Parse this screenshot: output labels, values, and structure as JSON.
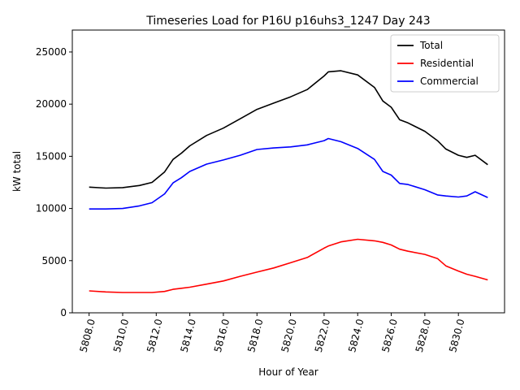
{
  "chart_data": {
    "type": "line",
    "title": "Timeseries Load for P16U p16uhs3_1247  Day 243",
    "xlabel": "Hour of Year",
    "ylabel": "kW total",
    "xlim": [
      5807.0,
      5832.75
    ],
    "ylim": [
      0,
      27100
    ],
    "xticks": [
      5808,
      5810,
      5812,
      5814,
      5816,
      5818,
      5820,
      5822,
      5824,
      5826,
      5828,
      5830
    ],
    "xtick_labels": [
      "5808.0",
      "5810.0",
      "5812.0",
      "5814.0",
      "5816.0",
      "5818.0",
      "5820.0",
      "5822.0",
      "5824.0",
      "5826.0",
      "5828.0",
      "5830.0"
    ],
    "yticks": [
      0,
      5000,
      10000,
      15000,
      20000,
      25000
    ],
    "ytick_labels": [
      "0",
      "5000",
      "10000",
      "15000",
      "20000",
      "25000"
    ],
    "grid": false,
    "legend": "upper right",
    "x": [
      5808,
      5809,
      5810,
      5811,
      5811.75,
      5812.5,
      5813,
      5813.5,
      5814,
      5815,
      5816,
      5817,
      5818,
      5819,
      5820,
      5821,
      5822,
      5822.25,
      5823,
      5824,
      5825,
      5825.5,
      5826,
      5826.5,
      5827,
      5828,
      5828.75,
      5829.25,
      5830,
      5830.5,
      5831,
      5831.75
    ],
    "series": [
      {
        "name": "Total",
        "color": "#000000",
        "values": [
          12050,
          11950,
          12000,
          12200,
          12500,
          13500,
          14700,
          15300,
          16000,
          17000,
          17700,
          18600,
          19500,
          20100,
          20700,
          21400,
          22700,
          23100,
          23200,
          22800,
          21600,
          20300,
          19700,
          18500,
          18200,
          17400,
          16500,
          15700,
          15100,
          14900,
          15100,
          14200
        ]
      },
      {
        "name": "Residential",
        "color": "#ff0000",
        "values": [
          2100,
          2000,
          1950,
          1950,
          1950,
          2050,
          2250,
          2350,
          2450,
          2750,
          3050,
          3500,
          3900,
          4300,
          4800,
          5300,
          6200,
          6400,
          6800,
          7050,
          6900,
          6750,
          6500,
          6100,
          5900,
          5600,
          5200,
          4500,
          4000,
          3700,
          3500,
          3150
        ]
      },
      {
        "name": "Commercial",
        "color": "#0000ff",
        "values": [
          9950,
          9950,
          10000,
          10250,
          10550,
          11400,
          12450,
          12950,
          13550,
          14250,
          14650,
          15100,
          15650,
          15800,
          15900,
          16100,
          16500,
          16700,
          16400,
          15750,
          14700,
          13550,
          13200,
          12400,
          12300,
          11800,
          11300,
          11200,
          11100,
          11200,
          11600,
          11050
        ]
      }
    ]
  }
}
